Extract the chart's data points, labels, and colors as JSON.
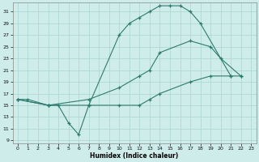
{
  "xlabel": "Humidex (Indice chaleur)",
  "bg_color": "#ceecea",
  "grid_color": "#aad4d0",
  "line_color": "#2e7b6e",
  "xlim": [
    -0.5,
    23.5
  ],
  "ylim": [
    8.5,
    32.5
  ],
  "xticks": [
    0,
    1,
    2,
    3,
    4,
    5,
    6,
    7,
    8,
    9,
    10,
    11,
    12,
    13,
    14,
    15,
    16,
    17,
    18,
    19,
    20,
    21,
    22,
    23
  ],
  "yticks": [
    9,
    11,
    13,
    15,
    17,
    19,
    21,
    23,
    25,
    27,
    29,
    31
  ],
  "curve1_x": [
    0,
    1,
    3,
    4,
    5,
    6,
    7,
    10,
    11,
    12,
    13,
    14,
    15,
    16,
    17,
    18,
    21
  ],
  "curve1_y": [
    16,
    16,
    15,
    15,
    12,
    10,
    15,
    27,
    29,
    30,
    31,
    32,
    32,
    32,
    31,
    29,
    20
  ],
  "curve2_x": [
    0,
    3,
    7,
    10,
    12,
    13,
    14,
    17,
    19,
    20,
    22
  ],
  "curve2_y": [
    16,
    15,
    16,
    18,
    20,
    21,
    24,
    26,
    25,
    23,
    20
  ],
  "curve3_x": [
    0,
    3,
    7,
    10,
    12,
    13,
    14,
    17,
    19,
    21,
    22
  ],
  "curve3_y": [
    16,
    15,
    15,
    15,
    15,
    16,
    17,
    19,
    20,
    20,
    20
  ]
}
